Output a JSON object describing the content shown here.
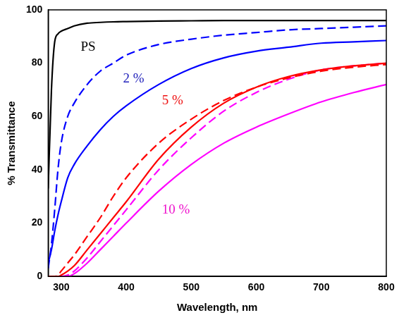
{
  "chart_data": {
    "type": "line",
    "x_label": "Wavelength, nm",
    "y_label": "% Transmittance",
    "x": [
      280,
      285,
      290,
      295,
      300,
      310,
      320,
      340,
      360,
      380,
      400,
      450,
      500,
      550,
      600,
      650,
      700,
      750,
      800
    ],
    "series": [
      {
        "color": "#000000",
        "line_style": "solid",
        "values": [
          33,
          70,
          88,
          91,
          92,
          93,
          94,
          95,
          95.3,
          95.5,
          95.6,
          95.8,
          95.9,
          96,
          96,
          96,
          96,
          96,
          96
        ]
      },
      {
        "color": "#0000ff",
        "line_style": "dashed",
        "values": [
          3,
          12,
          25,
          40,
          50,
          60,
          65,
          72,
          77,
          80,
          83,
          87,
          89,
          90.5,
          91.5,
          92.5,
          93,
          93.5,
          94
        ]
      },
      {
        "color": "#0000ff",
        "line_style": "solid",
        "values": [
          5,
          10,
          17,
          23,
          28,
          37,
          42,
          49,
          55,
          60,
          64,
          72,
          78,
          82,
          84.5,
          86,
          87.5,
          88,
          88.5
        ]
      },
      {
        "color": "#ff0000",
        "line_style": "dashed",
        "values": [
          0,
          0,
          0,
          0.5,
          2,
          5,
          8,
          15,
          22,
          30,
          37,
          50,
          59,
          66,
          71,
          74.5,
          77,
          78.5,
          79.5
        ]
      },
      {
        "color": "#ff0000",
        "line_style": "solid",
        "values": [
          0,
          0,
          0,
          0,
          0.5,
          2,
          4,
          10,
          16,
          22,
          28,
          44,
          56,
          65,
          71,
          75,
          77.5,
          79,
          80
        ]
      },
      {
        "color": "#ff00ff",
        "line_style": "dashed",
        "values": [
          0,
          0,
          0,
          0,
          0,
          0.5,
          2,
          7,
          13,
          19,
          25,
          40,
          52,
          62,
          69,
          74,
          77.5,
          79,
          80
        ]
      },
      {
        "color": "#ff00ff",
        "line_style": "solid",
        "values": [
          0,
          0,
          0,
          0,
          0,
          0,
          1,
          5,
          10,
          15,
          20,
          32,
          42,
          50,
          56,
          61,
          65.5,
          69,
          72
        ]
      }
    ],
    "xlim": [
      280,
      800
    ],
    "xticks": [
      300,
      400,
      500,
      600,
      700,
      800
    ],
    "ylim": [
      0,
      100
    ],
    "yticks": [
      0,
      20,
      40,
      60,
      80,
      100
    ],
    "grid": false,
    "annotations": [
      {
        "text": "PS",
        "x": 330,
        "y": 86,
        "color": "#000000"
      },
      {
        "text": "2 %",
        "x": 395,
        "y": 74,
        "color": "#2222bb"
      },
      {
        "text": "5 %",
        "x": 455,
        "y": 66,
        "color": "#ee1111"
      },
      {
        "text": "10 %",
        "x": 455,
        "y": 25,
        "color": "#ee11cc"
      }
    ]
  }
}
